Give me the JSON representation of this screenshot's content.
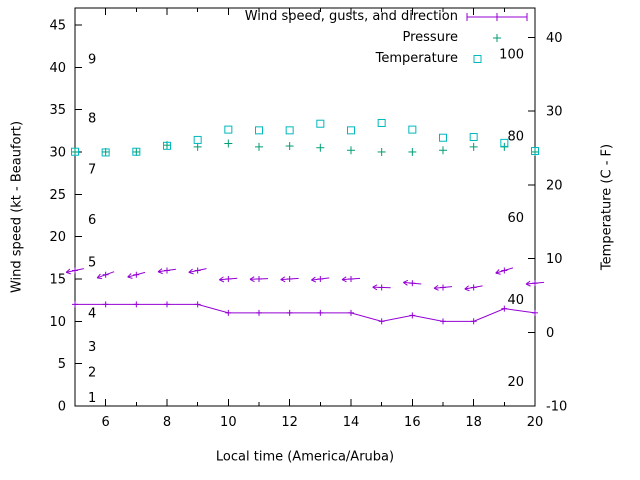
{
  "chart_data": {
    "type": "line",
    "title": "",
    "xlabel": "Local time (America/Aruba)",
    "ylabel": "Wind speed (kt - Beaufort)",
    "y2label": "Temperature (C - F)",
    "x_hours": [
      5,
      6,
      7,
      8,
      9,
      10,
      11,
      12,
      13,
      14,
      15,
      16,
      17,
      18,
      19,
      20
    ],
    "x_range": [
      5,
      20
    ],
    "x_major_ticks": [
      6,
      8,
      10,
      12,
      14,
      16,
      18,
      20
    ],
    "y_left_range": [
      0,
      47
    ],
    "y_left_ticks": [
      0,
      5,
      10,
      15,
      20,
      25,
      30,
      35,
      40,
      45
    ],
    "y_right_range": [
      -10,
      44
    ],
    "y_right_ticks": [
      -10,
      0,
      10,
      20,
      30,
      40
    ],
    "grid": false,
    "legend_position": "top-right",
    "beaufort_scale_labels": [
      {
        "label": "1",
        "kt": 1
      },
      {
        "label": "2",
        "kt": 4
      },
      {
        "label": "3",
        "kt": 7
      },
      {
        "label": "4",
        "kt": 11
      },
      {
        "label": "5",
        "kt": 17
      },
      {
        "label": "6",
        "kt": 22
      },
      {
        "label": "7",
        "kt": 28
      },
      {
        "label": "8",
        "kt": 34
      },
      {
        "label": "9",
        "kt": 41
      }
    ],
    "fahrenheit_scale_labels": [
      {
        "label": "20",
        "f": 20
      },
      {
        "label": "40",
        "f": 40
      },
      {
        "label": "60",
        "f": 60
      },
      {
        "label": "80",
        "f": 80
      },
      {
        "label": "100",
        "f": 100
      }
    ],
    "series": {
      "wind_speed": {
        "axis": "left",
        "style": "linespoints",
        "color": "#9400d3",
        "values": [
          12,
          12,
          12,
          12,
          12,
          11,
          11,
          11,
          11,
          11,
          10,
          10.7,
          10,
          10,
          11.5,
          11
        ]
      },
      "wind_gusts": {
        "axis": "left",
        "style": "vectors",
        "color": "#9400d3",
        "values": [
          16,
          15.5,
          15.5,
          16,
          16,
          15,
          15,
          15,
          15,
          15,
          14,
          14.5,
          14,
          14,
          16,
          14.5
        ],
        "arrow_angles_deg_screen": [
          168,
          160,
          165,
          172,
          168,
          175,
          178,
          176,
          173,
          176,
          182,
          185,
          175,
          170,
          163,
          175
        ]
      },
      "pressure": {
        "axis": "left",
        "style": "points-plus",
        "color": "#009e73",
        "values": [
          30,
          30,
          30,
          30.8,
          30.6,
          31,
          30.6,
          30.7,
          30.5,
          30.2,
          30,
          30,
          30.2,
          30.6,
          30.6,
          30
        ]
      },
      "temperature": {
        "axis": "right",
        "style": "points-open-square",
        "color": "#00b8bd",
        "values": [
          24.5,
          24.4,
          24.5,
          25.3,
          26.1,
          27.5,
          27.4,
          27.4,
          28.3,
          27.4,
          28.4,
          27.5,
          26.4,
          26.5,
          25.7,
          24.6
        ]
      }
    }
  },
  "legend": {
    "wind": "Wind speed, gusts, and direction",
    "pressure": "Pressure",
    "temperature": "Temperature"
  }
}
